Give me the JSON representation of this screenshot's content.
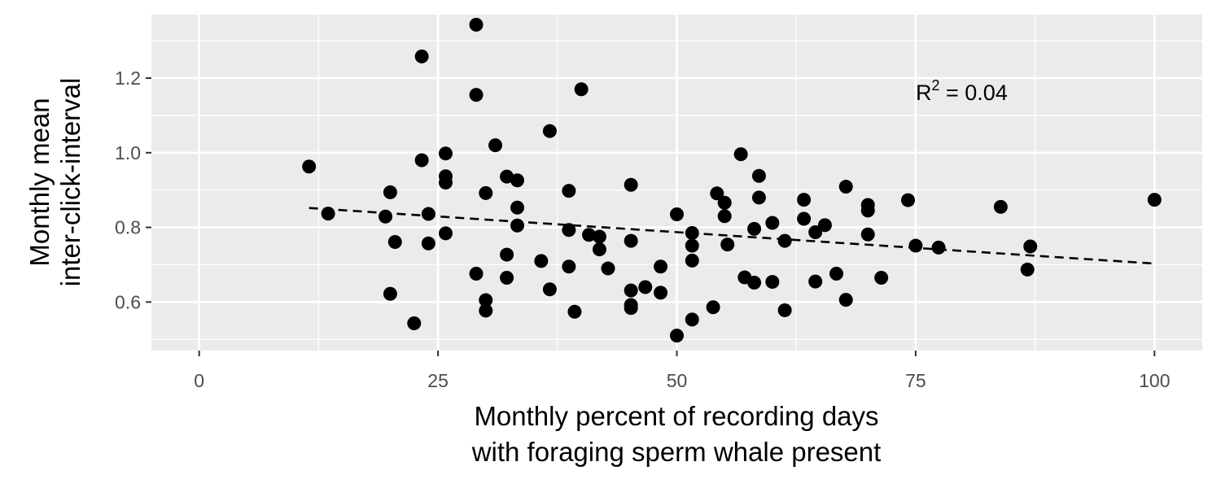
{
  "chart_data": {
    "type": "scatter",
    "title": "",
    "xlabel_lines": [
      "Monthly percent of recording days",
      "with foraging sperm whale present"
    ],
    "ylabel_lines": [
      "Monthly mean",
      "inter-click-interval"
    ],
    "xlim": [
      -5,
      105
    ],
    "ylim": [
      0.47,
      1.37
    ],
    "x_ticks": [
      0,
      25,
      50,
      75,
      100
    ],
    "x_tick_labels": [
      "0",
      "25",
      "50",
      "75",
      "100"
    ],
    "y_ticks": [
      0.6,
      0.8,
      1.0,
      1.2
    ],
    "y_tick_labels": [
      "0.6",
      "0.8",
      "1.0",
      "1.2"
    ],
    "grid": true,
    "background": "#ebebeb",
    "point_color": "#000000",
    "annotation": {
      "text_base": "R",
      "superscript": "2",
      "text_rest": " = 0.04",
      "x": 75,
      "y": 1.17
    },
    "trend_line": {
      "style": "dashed",
      "x": [
        11.5,
        100
      ],
      "y": [
        0.852,
        0.703
      ]
    },
    "points": [
      [
        11.5,
        0.963
      ],
      [
        13.5,
        0.837
      ],
      [
        19.5,
        0.829
      ],
      [
        20.0,
        0.894
      ],
      [
        20.0,
        0.622
      ],
      [
        20.5,
        0.761
      ],
      [
        22.5,
        0.543
      ],
      [
        23.3,
        1.258
      ],
      [
        23.3,
        0.98
      ],
      [
        24.0,
        0.836
      ],
      [
        24.0,
        0.757
      ],
      [
        25.8,
        0.998
      ],
      [
        25.8,
        0.937
      ],
      [
        25.8,
        0.92
      ],
      [
        25.8,
        0.784
      ],
      [
        29.0,
        1.343
      ],
      [
        29.0,
        1.155
      ],
      [
        29.0,
        0.676
      ],
      [
        30.0,
        0.892
      ],
      [
        30.0,
        0.605
      ],
      [
        30.0,
        0.577
      ],
      [
        31.0,
        1.02
      ],
      [
        32.2,
        0.936
      ],
      [
        32.2,
        0.727
      ],
      [
        32.2,
        0.665
      ],
      [
        33.3,
        0.926
      ],
      [
        33.3,
        0.853
      ],
      [
        33.3,
        0.805
      ],
      [
        35.8,
        0.71
      ],
      [
        36.7,
        1.058
      ],
      [
        36.7,
        0.634
      ],
      [
        38.7,
        0.898
      ],
      [
        38.7,
        0.793
      ],
      [
        38.7,
        0.695
      ],
      [
        39.3,
        0.574
      ],
      [
        40.0,
        1.17
      ],
      [
        40.8,
        0.78
      ],
      [
        41.9,
        0.775
      ],
      [
        41.9,
        0.741
      ],
      [
        42.8,
        0.69
      ],
      [
        45.2,
        0.914
      ],
      [
        45.2,
        0.764
      ],
      [
        45.2,
        0.631
      ],
      [
        45.2,
        0.592
      ],
      [
        45.2,
        0.584
      ],
      [
        46.7,
        0.64
      ],
      [
        48.3,
        0.695
      ],
      [
        48.3,
        0.625
      ],
      [
        50.0,
        0.835
      ],
      [
        50.0,
        0.51
      ],
      [
        51.6,
        0.785
      ],
      [
        51.6,
        0.751
      ],
      [
        51.6,
        0.711
      ],
      [
        51.6,
        0.553
      ],
      [
        53.8,
        0.586
      ],
      [
        54.2,
        0.891
      ],
      [
        55.0,
        0.866
      ],
      [
        55.0,
        0.83
      ],
      [
        55.3,
        0.754
      ],
      [
        56.7,
        0.996
      ],
      [
        57.1,
        0.666
      ],
      [
        58.1,
        0.796
      ],
      [
        58.1,
        0.652
      ],
      [
        58.6,
        0.938
      ],
      [
        58.6,
        0.88
      ],
      [
        60.0,
        0.812
      ],
      [
        60.0,
        0.654
      ],
      [
        61.3,
        0.764
      ],
      [
        61.3,
        0.578
      ],
      [
        63.3,
        0.874
      ],
      [
        63.3,
        0.823
      ],
      [
        64.5,
        0.787
      ],
      [
        64.5,
        0.655
      ],
      [
        65.5,
        0.806
      ],
      [
        66.7,
        0.676
      ],
      [
        67.7,
        0.909
      ],
      [
        67.7,
        0.606
      ],
      [
        70.0,
        0.86
      ],
      [
        70.0,
        0.845
      ],
      [
        70.0,
        0.781
      ],
      [
        71.4,
        0.665
      ],
      [
        74.2,
        0.873
      ],
      [
        75.0,
        0.751
      ],
      [
        77.4,
        0.746
      ],
      [
        83.9,
        0.855
      ],
      [
        86.7,
        0.687
      ],
      [
        87.0,
        0.749
      ],
      [
        100.0,
        0.874
      ]
    ]
  }
}
